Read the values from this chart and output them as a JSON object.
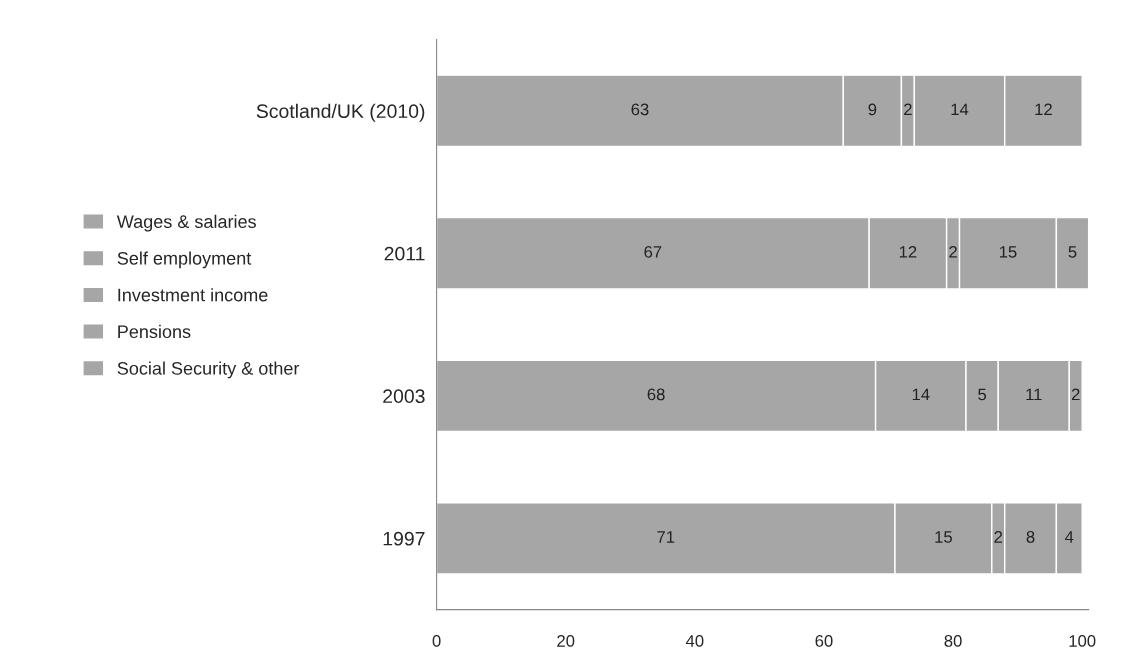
{
  "chart_data": {
    "type": "bar",
    "orientation": "horizontal",
    "stacked": true,
    "categories": [
      "Scotland/UK (2010)",
      "2011",
      "2003",
      "1997"
    ],
    "series": [
      {
        "name": "Wages & salaries",
        "color": "#a6a6a6",
        "values": [
          63,
          67,
          68,
          71
        ]
      },
      {
        "name": "Self employment",
        "color": "#a6a6a6",
        "values": [
          9,
          12,
          14,
          15
        ]
      },
      {
        "name": "Investment income",
        "color": "#a6a6a6",
        "values": [
          2,
          2,
          5,
          2
        ]
      },
      {
        "name": "Pensions",
        "color": "#a6a6a6",
        "values": [
          14,
          15,
          11,
          8
        ]
      },
      {
        "name": "Social Security & other",
        "color": "#a6a6a6",
        "values": [
          12,
          5,
          2,
          4
        ]
      }
    ],
    "xlim": [
      0,
      101
    ],
    "xticks": [
      0,
      20,
      40,
      60,
      80,
      100
    ],
    "data_labels": true,
    "grid": false,
    "legend": "left"
  }
}
